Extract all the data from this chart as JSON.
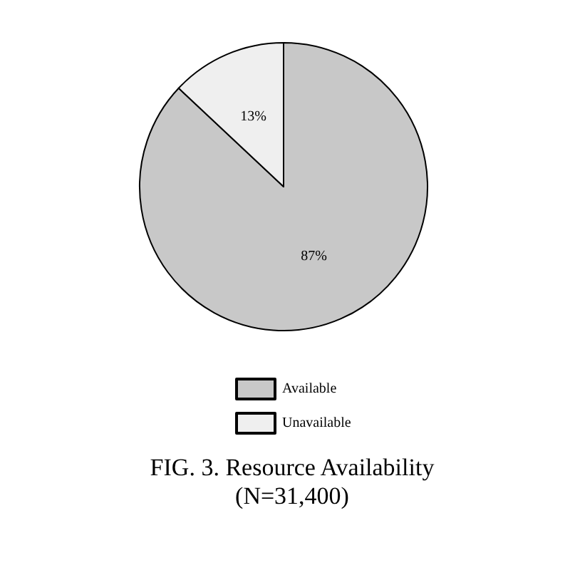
{
  "chart_data": {
    "type": "pie",
    "title": "FIG. 3. Resource Availability\n(N=31,400)",
    "categories": [
      "Available",
      "Unavailable"
    ],
    "values": [
      87,
      13
    ],
    "colors": [
      "#c8c8c8",
      "#efefef"
    ],
    "value_labels": [
      "87%",
      "13%"
    ],
    "legend": "bottom"
  }
}
